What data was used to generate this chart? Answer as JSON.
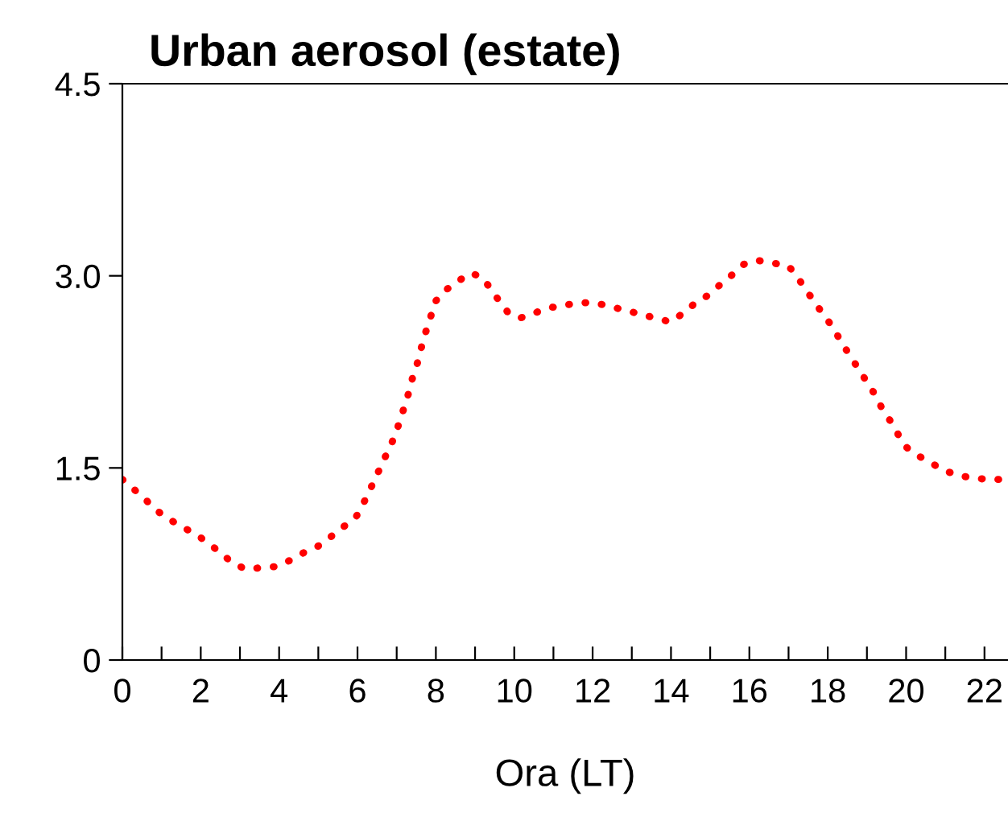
{
  "chart_data": {
    "type": "line",
    "title": "Urban aerosol (estate)",
    "xlabel": "Ora (LT)",
    "x": [
      0,
      0.27,
      0.6,
      0.86,
      1.19,
      1.52,
      1.89,
      2.2,
      2.5,
      2.8,
      3.14,
      3.54,
      3.93,
      4.29,
      4.64,
      5.0,
      5.31,
      5.64,
      5.95,
      6.13,
      6.29,
      6.47,
      6.64,
      6.8,
      6.96,
      7.08,
      7.2,
      7.32,
      7.41,
      7.54,
      7.63,
      7.74,
      7.86,
      7.96,
      8.21,
      8.54,
      8.85,
      9.12,
      9.38,
      9.6,
      9.85,
      10.15,
      10.52,
      10.89,
      11.28,
      11.67,
      12.05,
      12.46,
      12.84,
      13.23,
      13.6,
      13.99,
      14.32,
      14.63,
      14.96,
      15.25,
      15.57,
      15.86,
      16.21,
      16.59,
      16.99,
      17.23,
      17.44,
      17.68,
      17.9,
      18.13,
      18.33,
      18.54,
      18.75,
      18.96,
      19.17,
      19.36,
      19.57,
      19.78,
      19.97,
      20.28,
      20.63,
      20.97,
      21.35,
      21.73,
      22.11,
      22.5
    ],
    "series": [
      {
        "color": "#ff0000",
        "values": [
          1.41,
          1.34,
          1.25,
          1.17,
          1.1,
          1.04,
          0.98,
          0.91,
          0.84,
          0.76,
          0.71,
          0.72,
          0.73,
          0.78,
          0.84,
          0.89,
          0.96,
          1.04,
          1.11,
          1.21,
          1.31,
          1.43,
          1.54,
          1.65,
          1.75,
          1.87,
          1.98,
          2.1,
          2.21,
          2.33,
          2.44,
          2.56,
          2.67,
          2.79,
          2.88,
          2.95,
          3.02,
          3.0,
          2.91,
          2.81,
          2.71,
          2.67,
          2.71,
          2.75,
          2.77,
          2.79,
          2.79,
          2.76,
          2.73,
          2.7,
          2.67,
          2.64,
          2.71,
          2.79,
          2.85,
          2.93,
          3.01,
          3.09,
          3.12,
          3.1,
          3.08,
          2.99,
          2.89,
          2.79,
          2.69,
          2.6,
          2.49,
          2.39,
          2.29,
          2.19,
          2.09,
          1.98,
          1.88,
          1.77,
          1.67,
          1.6,
          1.54,
          1.48,
          1.44,
          1.42,
          1.41,
          1.41
        ]
      }
    ],
    "xlim": [
      0,
      22.6
    ],
    "xticks": [
      0,
      {
        "value": 1,
        "label": null
      },
      2,
      {
        "value": 3,
        "label": null
      },
      4,
      {
        "value": 5,
        "label": null
      },
      6,
      {
        "value": 7,
        "label": null
      },
      8,
      {
        "value": 9,
        "label": null
      },
      10,
      {
        "value": 11,
        "label": null
      },
      12,
      {
        "value": 13,
        "label": null
      },
      14,
      {
        "value": 15,
        "label": null
      },
      16,
      {
        "value": 17,
        "label": null
      },
      18,
      {
        "value": 19,
        "label": null
      },
      20,
      {
        "value": 21,
        "label": null
      },
      22
    ],
    "ylim": [
      0,
      4.5
    ],
    "yticks": [
      {
        "value": 0,
        "label": "0"
      },
      {
        "value": 1.5,
        "label": "1.5"
      },
      {
        "value": 3,
        "label": "3.0"
      },
      {
        "value": 4.5,
        "label": "4.5"
      }
    ],
    "grid": false,
    "marker": "none",
    "line_style": "dotted"
  }
}
